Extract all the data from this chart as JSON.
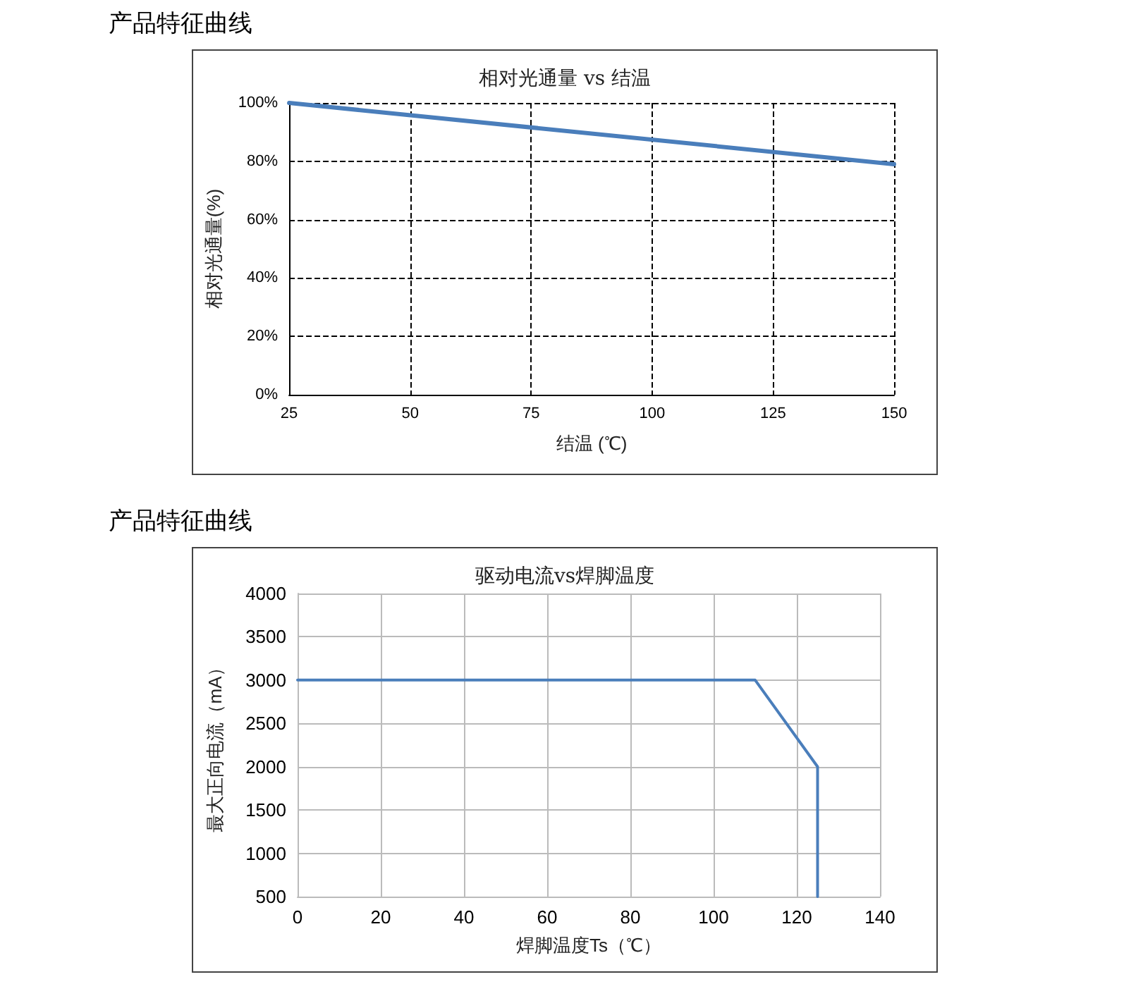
{
  "chart_data": [
    {
      "type": "line",
      "annotations": [
        "产品特征曲线"
      ],
      "title": "相对光通量 vs 结温",
      "xlabel": "结温 (℃)",
      "ylabel": "相对光通量(%)",
      "series": [
        {
          "color": "#4a7ebb",
          "x": [
            25,
            150
          ],
          "values": [
            100,
            79
          ]
        }
      ],
      "xlim": [
        25,
        150
      ],
      "xticks": [
        25,
        50,
        75,
        100,
        125,
        150
      ],
      "ylim": [
        0,
        100
      ],
      "yticks": [
        {
          "value": 0,
          "label": "0%"
        },
        {
          "value": 20,
          "label": "20%"
        },
        {
          "value": 40,
          "label": "40%"
        },
        {
          "value": 60,
          "label": "60%"
        },
        {
          "value": 80,
          "label": "80%"
        },
        {
          "value": 100,
          "label": "100%"
        }
      ],
      "grid": true,
      "marker": "none",
      "line_style": "solid"
    },
    {
      "type": "line",
      "annotations": [
        "产品特征曲线"
      ],
      "title": "驱动电流vs焊脚温度",
      "xlabel": "焊脚温度Ts（℃）",
      "ylabel": "最大正向电流（mA）",
      "series": [
        {
          "color": "#4a7ebb",
          "x": [
            0,
            110,
            125,
            125
          ],
          "values": [
            3000,
            3000,
            2000,
            500
          ]
        }
      ],
      "xlim": [
        0,
        140
      ],
      "xticks": [
        0,
        20,
        40,
        60,
        80,
        100,
        120,
        140
      ],
      "ylim": [
        500,
        4000
      ],
      "yticks": [
        500,
        1000,
        1500,
        2000,
        2500,
        3000,
        3500,
        4000
      ],
      "grid": true,
      "marker": "none",
      "line_style": "solid"
    }
  ]
}
